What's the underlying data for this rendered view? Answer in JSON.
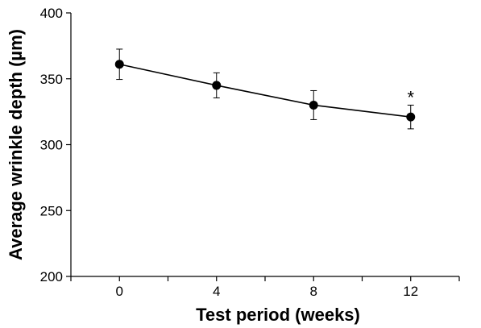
{
  "chart_data": {
    "type": "line",
    "title": "",
    "xlabel": "Test period (weeks)",
    "ylabel": "Average wrinkle depth (µm)",
    "x": [
      0,
      4,
      8,
      12
    ],
    "x_tick_labels": [
      "0",
      "4",
      "8",
      "12"
    ],
    "y_ticks": [
      200,
      250,
      300,
      350,
      400
    ],
    "y_tick_labels": [
      "200",
      "250",
      "300",
      "350",
      "400"
    ],
    "ylim": [
      200,
      400
    ],
    "xlim": [
      -2,
      14
    ],
    "series": [
      {
        "values": [
          361,
          345,
          330,
          321
        ],
        "error": [
          11.5,
          9.5,
          11,
          9
        ],
        "color": "#000000"
      }
    ],
    "annotations": [
      {
        "x": 12,
        "text": "*"
      }
    ],
    "grid": false,
    "legend": "none"
  }
}
